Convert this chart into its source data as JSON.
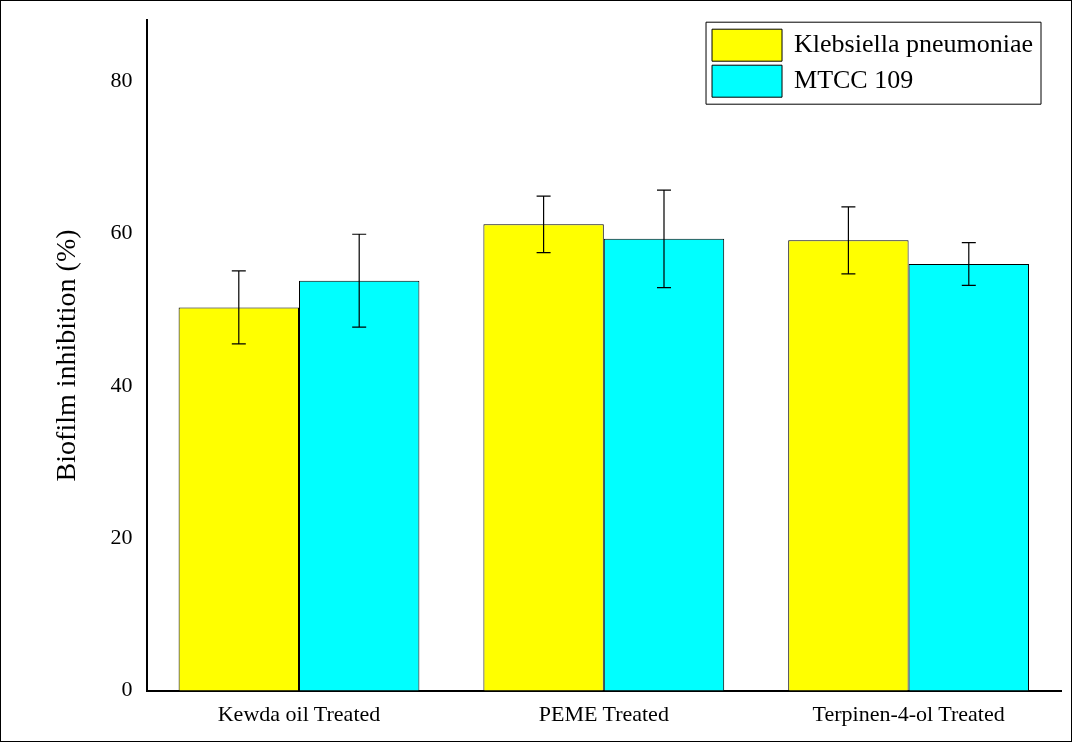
{
  "chart_data": {
    "type": "bar",
    "ylabel": "Biofilm inhibition (%)",
    "categories": [
      "Kewda oil Treated",
      "PEME Treated",
      "Terpinen-4-ol Treated"
    ],
    "series": [
      {
        "name": "Klebsiella pneumoniae",
        "color": "#ffff00",
        "values": [
          50.3,
          61.2,
          59.1
        ],
        "errors": [
          4.8,
          3.7,
          4.4
        ]
      },
      {
        "name": "MTCC 109",
        "color": "#00ffff",
        "values": [
          53.8,
          59.3,
          56.0
        ],
        "errors": [
          6.1,
          6.4,
          2.8
        ]
      }
    ],
    "ylim": [
      0,
      88
    ],
    "yticks": [
      0,
      20,
      40,
      60,
      80
    ],
    "grid": false,
    "legend": "top right"
  }
}
